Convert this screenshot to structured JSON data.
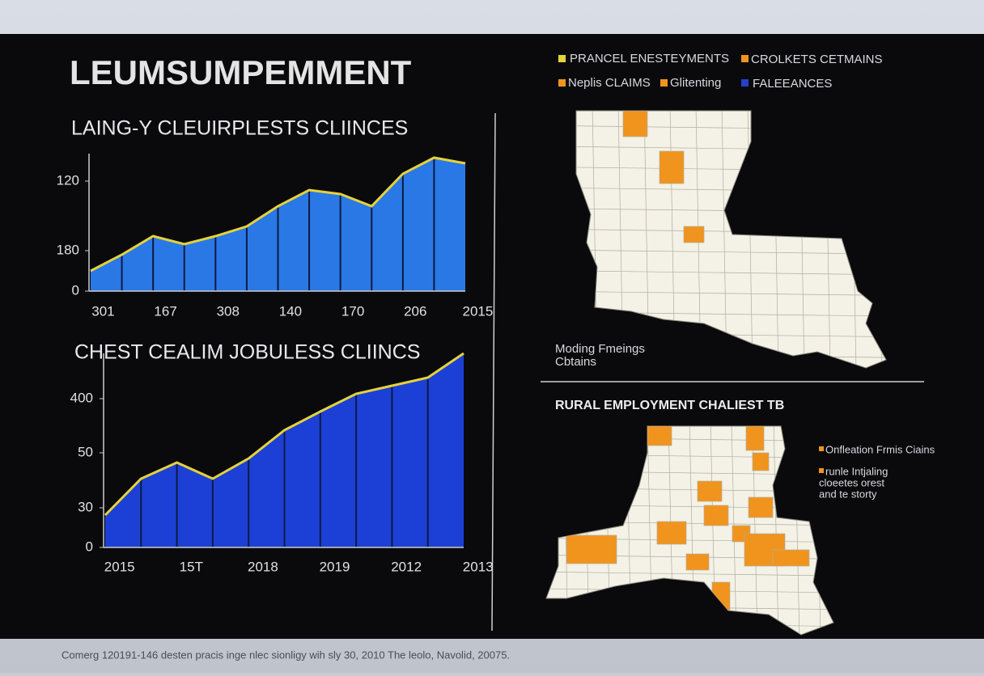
{
  "title": "LEUMSUMPEMMENT",
  "chart_data": [
    {
      "type": "area",
      "title": "LAING-Y CLEUIRPLESTS CLIINCES",
      "categories": [
        "301",
        null,
        "167",
        null,
        "308",
        null,
        "140",
        null,
        "170",
        null,
        "206",
        null,
        "2015"
      ],
      "values": [
        25,
        45,
        68,
        58,
        68,
        80,
        105,
        125,
        120,
        105,
        145,
        165,
        158
      ],
      "color": "#2a78e6",
      "line_color": "#e6d23a",
      "ylim": [
        0,
        170
      ],
      "yticks": [
        0,
        {
          "value": 50,
          "label": "180"
        },
        {
          "value": 136,
          "label": "120"
        }
      ]
    },
    {
      "type": "area",
      "title": "CHEST CEALIM JOBULESS CLIINCS",
      "categories": [
        "2015",
        null,
        "15T",
        null,
        "2018",
        null,
        "2019",
        null,
        "2012",
        null,
        "2013"
      ],
      "values": [
        40,
        85,
        105,
        85,
        110,
        145,
        168,
        190,
        200,
        210,
        240
      ],
      "color": "#1c40d6",
      "line_color": "#e6d23a",
      "ylim": [
        0,
        240
      ],
      "yticks": [
        0,
        {
          "value": 49,
          "label": "30"
        },
        {
          "value": 117,
          "label": "50"
        },
        {
          "value": 184,
          "label": "400"
        }
      ]
    }
  ],
  "maps": [
    {
      "legend": [
        "PRANCEL ENESTEYMENTS",
        "CROLKETS CETMAINS",
        "Neplis CLAIMS",
        "Glitenting",
        "FALEEANCES"
      ],
      "notes": [
        "Moding Fmeings",
        "Cbtains"
      ]
    },
    {
      "title": "RURAL EMPLOYMENT CHALIEST TB",
      "legend": [
        "Onfleation Frmis Ciains",
        "runle Intjaling",
        "cloeetes orest",
        "and te storty"
      ]
    }
  ],
  "footer": "Comerg 120191-146 desten pracis inge nlec sionligy wih sly 30, 2010 The leolo, Navolid, 20075."
}
